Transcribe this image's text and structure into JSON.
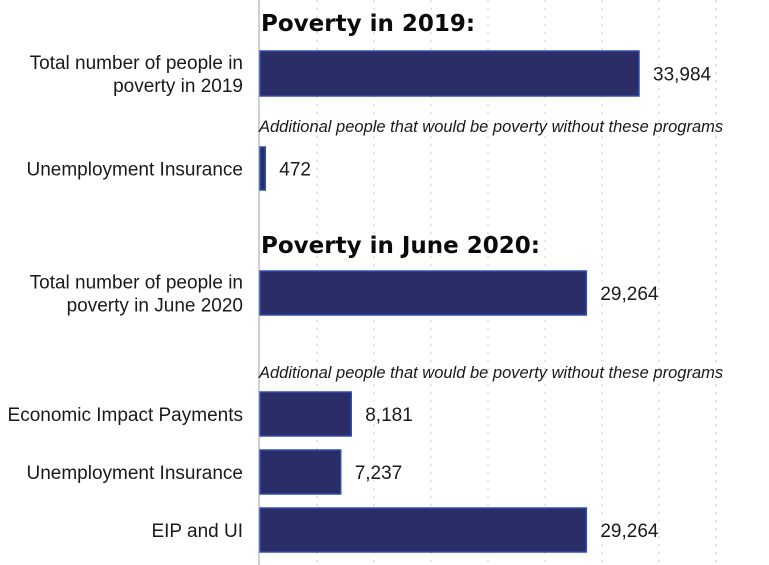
{
  "colors": {
    "bar": "#2b2d66",
    "bar_edge": "#2f4fb0"
  },
  "chart_data": {
    "type": "bar",
    "orientation": "horizontal",
    "grid": true,
    "sections": [
      {
        "title": "Poverty in 2019:",
        "note": "Additional people that would be poverty without these programs",
        "total": {
          "label": [
            "Total number of people in",
            "poverty in 2019"
          ],
          "value": 33984,
          "value_label": "33,984"
        },
        "bars": [
          {
            "label": [
              "Unemployment Insurance"
            ],
            "value": 472,
            "value_label": "472"
          }
        ]
      },
      {
        "title": "Poverty in June 2020:",
        "note": "Additional people that would be poverty without these programs",
        "total": {
          "label": [
            "Total number of people in",
            "poverty in June 2020"
          ],
          "value": 29264,
          "value_label": "29,264"
        },
        "bars": [
          {
            "label": [
              "Economic Impact Payments"
            ],
            "value": 8181,
            "value_label": "8,181"
          },
          {
            "label": [
              "Unemployment Insurance"
            ],
            "value": 7237,
            "value_label": "7,237"
          },
          {
            "label": [
              "EIP and UI"
            ],
            "value": 29264,
            "value_label": "29,264"
          }
        ]
      }
    ]
  }
}
